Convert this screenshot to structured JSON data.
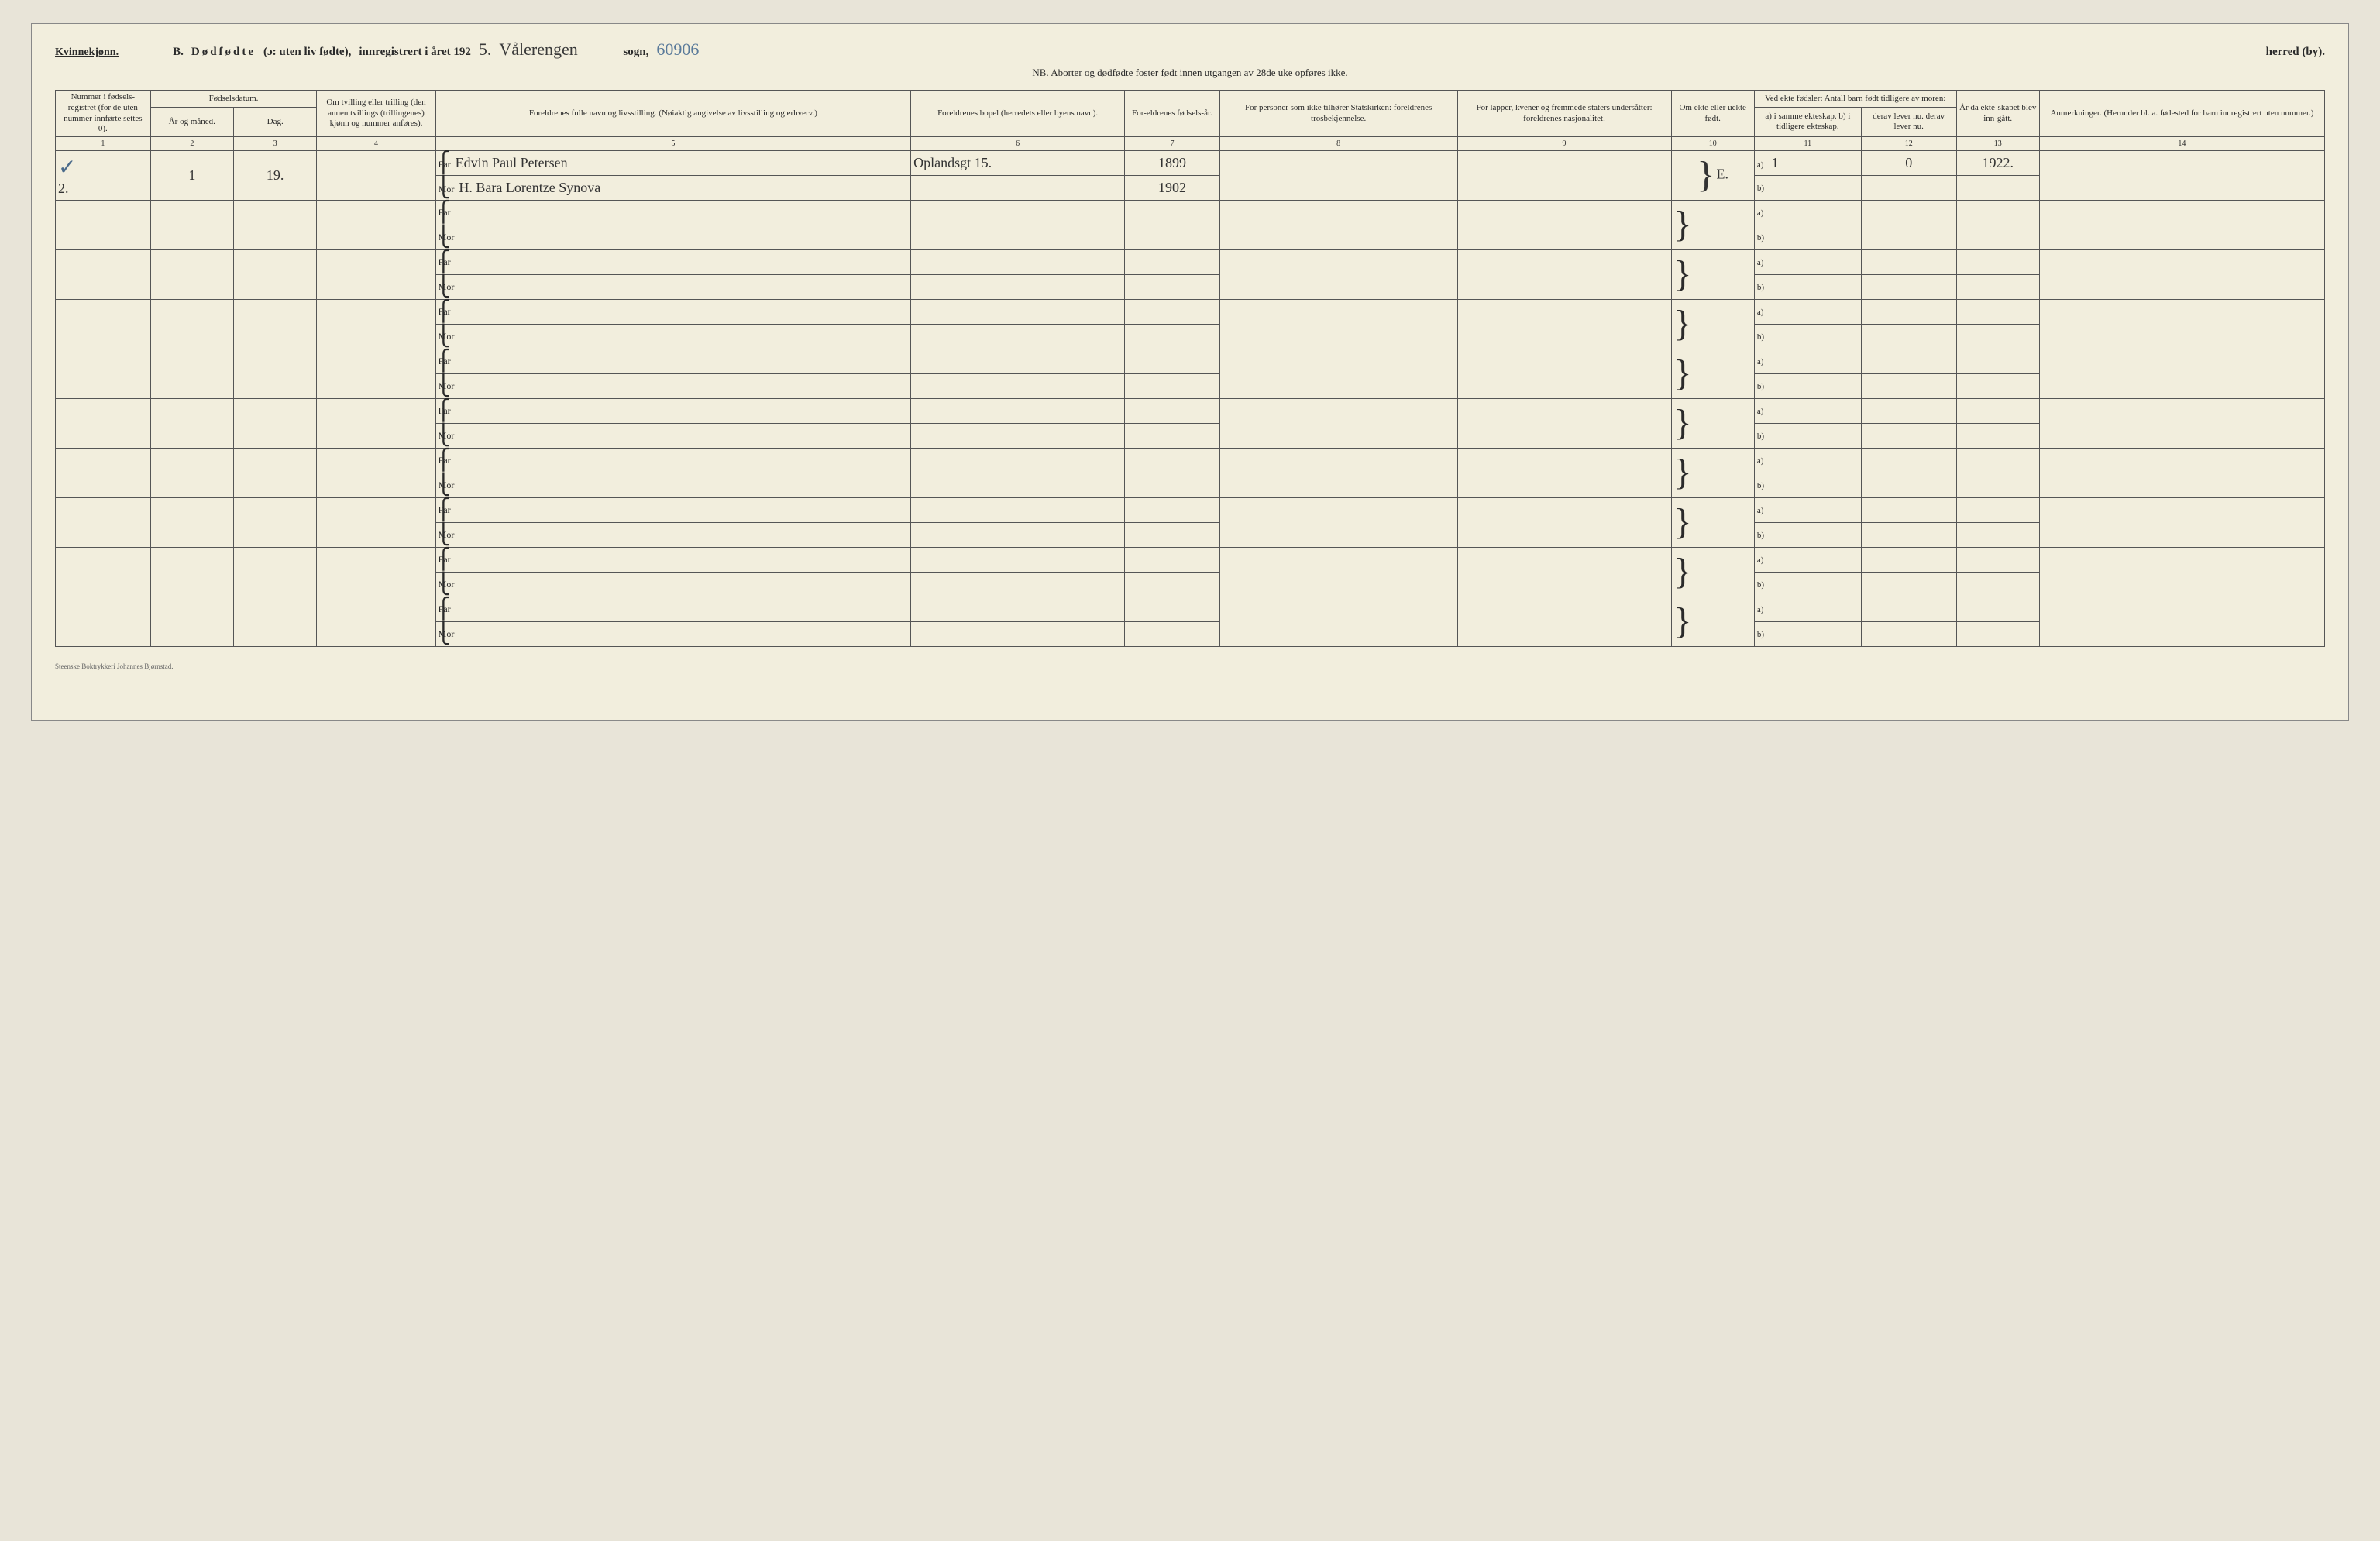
{
  "header": {
    "gender": "Kvinnekjønn.",
    "section_letter": "B.",
    "title_main": "Dødfødte",
    "title_paren": "(ɔ: uten liv fødte),",
    "title_reg": "innregistrert i året 192",
    "year_suffix_hw": "5.",
    "sogn_hw": "Vålerengen",
    "sogn_label": "sogn,",
    "herred_hw": "60906",
    "herred_label": "herred (by).",
    "nb": "NB.  Aborter og dødfødte foster født innen utgangen av 28de uke opføres ikke."
  },
  "columns": {
    "c1": "Nummer i fødsels-registret (for de uten nummer innførte settes 0).",
    "c2_top": "Fødselsdatum.",
    "c2": "År og måned.",
    "c3": "Dag.",
    "c4": "Om tvilling eller trilling (den annen tvillings (trillingenes) kjønn og nummer anføres).",
    "c5": "Foreldrenes fulle navn og livsstilling. (Nøiaktig angivelse av livsstilling og erhverv.)",
    "c6": "Foreldrenes bopel (herredets eller byens navn).",
    "c7": "For-eldrenes fødsels-år.",
    "c8": "For personer som ikke tilhører Statskirken: foreldrenes trosbekjennelse.",
    "c9": "For lapper, kvener og fremmede staters undersåtter: foreldrenes nasjonalitet.",
    "c10": "Om ekte eller uekte født.",
    "c11_top": "Ved ekte fødsler: Antall barn født tidligere av moren:",
    "c11": "a) i samme ekteskap.  b) i tidligere ekteskap.",
    "c12": "derav lever nu.  derav lever nu.",
    "c13": "År da ekte-skapet blev inn-gått.",
    "c14": "Anmerkninger. (Herunder bl. a. fødested for barn innregistrert uten nummer.)"
  },
  "colnums": [
    "1",
    "2",
    "3",
    "4",
    "5",
    "6",
    "7",
    "8",
    "9",
    "10",
    "11",
    "12",
    "13",
    "14"
  ],
  "labels": {
    "far": "Far",
    "mor": "Mor",
    "a": "a)",
    "b": "b)"
  },
  "entry": {
    "check": "✓",
    "nummer": "2.",
    "aar_maaned": "1",
    "dag": "19.",
    "far_navn": "Edvin Paul Petersen",
    "mor_navn": "H. Bara Lorentze Synova",
    "bopel": "Oplandsgt 15.",
    "far_aar": "1899",
    "mor_aar": "1902",
    "ekte": "E.",
    "col11a": "1",
    "col12a": "0",
    "col13": "1922."
  },
  "blank_rows": 9,
  "footer": "Steenske Boktrykkeri Johannes Bjørnstad."
}
